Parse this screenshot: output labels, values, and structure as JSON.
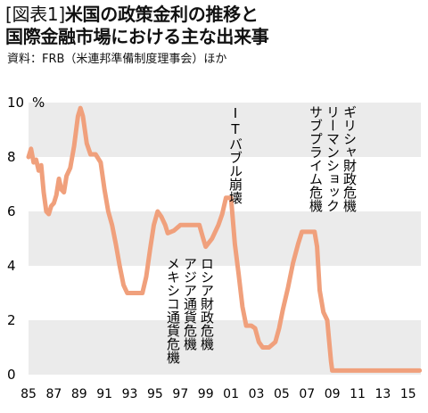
{
  "header": {
    "tag": "[図表1]",
    "title_line1": "米国の政策金利の推移と",
    "title_line2": "国際金融市場における主な出来事",
    "source": "資料：FRB（米連邦準備制度理事会）ほか"
  },
  "chart_data": {
    "type": "line",
    "unit_label": "%",
    "y_ticks": [
      "0",
      "2",
      "4",
      "6",
      "8",
      "10"
    ],
    "x_ticks": [
      "85",
      "87",
      "89",
      "91",
      "93",
      "95",
      "97",
      "99",
      "01",
      "03",
      "05",
      "07",
      "09",
      "11",
      "13",
      "15"
    ],
    "ylim": [
      0,
      10
    ],
    "xlim": [
      1985,
      2016
    ],
    "grid": "horizontal bands",
    "line_color": "#f0a07c",
    "band_color": "#ebebeb",
    "series": [
      {
        "x": [
          1985.0,
          1985.2,
          1985.4,
          1985.6,
          1985.8,
          1986.0,
          1986.2,
          1986.4,
          1986.6,
          1986.8,
          1987.0,
          1987.2,
          1987.4,
          1987.6,
          1987.8,
          1988.0,
          1988.3,
          1988.6,
          1988.9,
          1989.1,
          1989.3,
          1989.6,
          1989.9,
          1990.3,
          1990.7,
          1991.0,
          1991.3,
          1991.6,
          1991.9,
          1992.2,
          1992.5,
          1992.8,
          1993.0,
          1993.5,
          1994.0,
          1994.3,
          1994.6,
          1994.9,
          1995.2,
          1995.5,
          1995.8,
          1996.0,
          1996.5,
          1997.0,
          1997.3,
          1997.6,
          1998.0,
          1998.5,
          1998.8,
          1999.0,
          1999.5,
          2000.0,
          2000.3,
          2000.6,
          2001.0,
          2001.3,
          2001.6,
          2001.9,
          2002.2,
          2002.6,
          2002.9,
          2003.2,
          2003.5,
          2004.0,
          2004.5,
          2004.8,
          2005.1,
          2005.5,
          2005.9,
          2006.3,
          2006.6,
          2007.0,
          2007.6,
          2007.8,
          2008.0,
          2008.3,
          2008.6,
          2008.9,
          2009.0,
          2010,
          2012,
          2014,
          2015.9
        ],
        "y": [
          8.0,
          8.3,
          7.8,
          7.9,
          7.5,
          7.7,
          6.7,
          6.0,
          5.9,
          6.2,
          6.3,
          6.6,
          7.2,
          6.8,
          6.7,
          7.3,
          7.6,
          8.4,
          9.5,
          9.8,
          9.5,
          8.5,
          8.1,
          8.1,
          7.8,
          6.8,
          6.0,
          5.5,
          4.8,
          4.0,
          3.3,
          3.0,
          3.0,
          3.0,
          3.0,
          3.6,
          4.6,
          5.5,
          6.0,
          5.8,
          5.5,
          5.2,
          5.3,
          5.5,
          5.5,
          5.5,
          5.5,
          5.5,
          5.0,
          4.7,
          5.0,
          5.5,
          5.9,
          6.5,
          6.5,
          4.8,
          3.7,
          2.5,
          1.8,
          1.8,
          1.7,
          1.2,
          1.0,
          1.0,
          1.2,
          1.7,
          2.4,
          3.2,
          4.1,
          4.8,
          5.25,
          5.25,
          5.25,
          4.7,
          3.1,
          2.3,
          2.0,
          0.5,
          0.15,
          0.15,
          0.15,
          0.15,
          0.15
        ]
      }
    ],
    "annotations": [
      {
        "lines": [
          "ロシア財政危機",
          "アジア通貨危機",
          "メキシコ通貨危機"
        ]
      },
      {
        "lines": [
          "ITバブル崩壊"
        ]
      },
      {
        "lines": [
          "ギリシャ財政危機",
          "リーマンショック",
          "サブプライム危機"
        ]
      }
    ]
  }
}
